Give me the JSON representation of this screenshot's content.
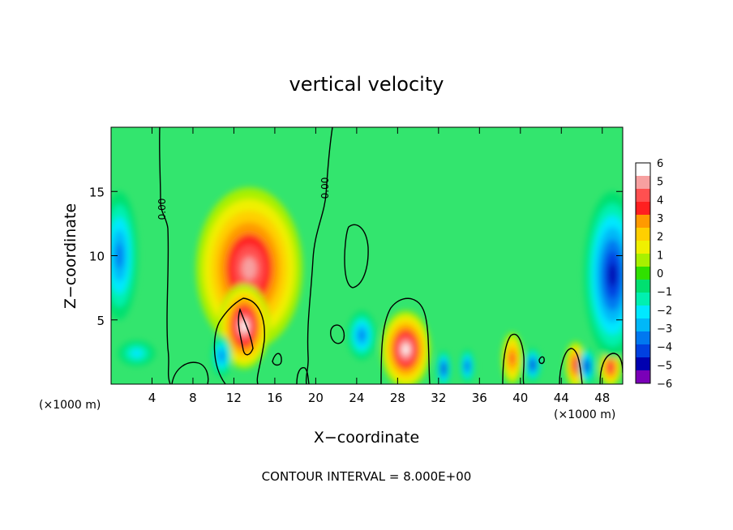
{
  "chart_data": {
    "type": "heatmap",
    "title": "vertical velocity",
    "xlabel": "X−coordinate",
    "ylabel": "Z−coordinate",
    "x_unit_left": "(×1000 m)",
    "x_unit_right": "(×1000 m)",
    "footer": "CONTOUR INTERVAL = 8.000E+00",
    "xlim": [
      0,
      50
    ],
    "ylim": [
      0,
      20
    ],
    "x_ticks": [
      4,
      8,
      12,
      16,
      20,
      24,
      28,
      32,
      36,
      40,
      44,
      48
    ],
    "x_tick_labels": [
      "4",
      "8",
      "12",
      "16",
      "20",
      "24",
      "28",
      "32",
      "36",
      "40",
      "44",
      "48"
    ],
    "y_ticks": [
      5,
      10,
      15
    ],
    "y_tick_labels": [
      "5",
      "10",
      "15"
    ],
    "contour_labels": [
      {
        "text": "0.00",
        "x": 5.2,
        "z": 13.6,
        "angle": -90
      },
      {
        "text": "0.00",
        "x": 21.2,
        "z": 15.0,
        "angle": -90
      }
    ],
    "colorbar": {
      "labels": [
        "6",
        "5",
        "4",
        "3",
        "2",
        "1",
        "0",
        "−1",
        "−2",
        "−3",
        "−4",
        "−5",
        "−6"
      ],
      "colors": [
        "#ffffff",
        "#f7a0a0",
        "#ff5050",
        "#ff2020",
        "#ff9a00",
        "#ffcf00",
        "#f0f000",
        "#a8f000",
        "#30e000",
        "#00e070",
        "#00f0b0",
        "#00e8ff",
        "#00b8f8",
        "#0078f0",
        "#0040e0",
        "#0000b0",
        "#7a00b8"
      ]
    },
    "field_background": "#33e56e",
    "features": [
      {
        "kind": "updraft",
        "x": 13.5,
        "z": 9.0,
        "rx": 5.2,
        "rz": 6.3,
        "value": 5.5
      },
      {
        "kind": "updraft",
        "x": 13.0,
        "z": 4.5,
        "rx": 2.5,
        "rz": 3.3,
        "value": 6.0
      },
      {
        "kind": "updraft",
        "x": 28.8,
        "z": 2.7,
        "rx": 2.4,
        "rz": 3.0,
        "value": 6.0
      },
      {
        "kind": "updraft",
        "x": 39.2,
        "z": 2.0,
        "rx": 1.0,
        "rz": 2.0,
        "value": 4.0
      },
      {
        "kind": "updraft",
        "x": 45.4,
        "z": 1.5,
        "rx": 1.0,
        "rz": 1.8,
        "value": 4.5
      },
      {
        "kind": "updraft",
        "x": 48.8,
        "z": 1.3,
        "rx": 1.1,
        "rz": 1.5,
        "value": 4.5
      },
      {
        "kind": "downdraft",
        "x": 0.8,
        "z": 10.0,
        "rx": 1.8,
        "rz": 5.0,
        "value": -3.5
      },
      {
        "kind": "downdraft",
        "x": 49.0,
        "z": 8.5,
        "rx": 2.8,
        "rz": 6.5,
        "value": -5.0
      },
      {
        "kind": "downdraft",
        "x": 24.5,
        "z": 3.8,
        "rx": 1.4,
        "rz": 1.9,
        "value": -4.0
      },
      {
        "kind": "downdraft",
        "x": 2.5,
        "z": 2.4,
        "rx": 1.8,
        "rz": 1.0,
        "value": -2.5
      },
      {
        "kind": "downdraft",
        "x": 10.8,
        "z": 2.2,
        "rx": 1.0,
        "rz": 1.6,
        "value": -4.0
      },
      {
        "kind": "downdraft",
        "x": 32.5,
        "z": 1.2,
        "rx": 0.7,
        "rz": 1.4,
        "value": -5.0
      },
      {
        "kind": "downdraft",
        "x": 34.8,
        "z": 1.4,
        "rx": 0.7,
        "rz": 1.3,
        "value": -4.5
      },
      {
        "kind": "downdraft",
        "x": 41.2,
        "z": 1.5,
        "rx": 0.8,
        "rz": 1.3,
        "value": -5.0
      },
      {
        "kind": "downdraft",
        "x": 46.5,
        "z": 1.4,
        "rx": 0.8,
        "rz": 1.4,
        "value": -5.0
      }
    ]
  }
}
